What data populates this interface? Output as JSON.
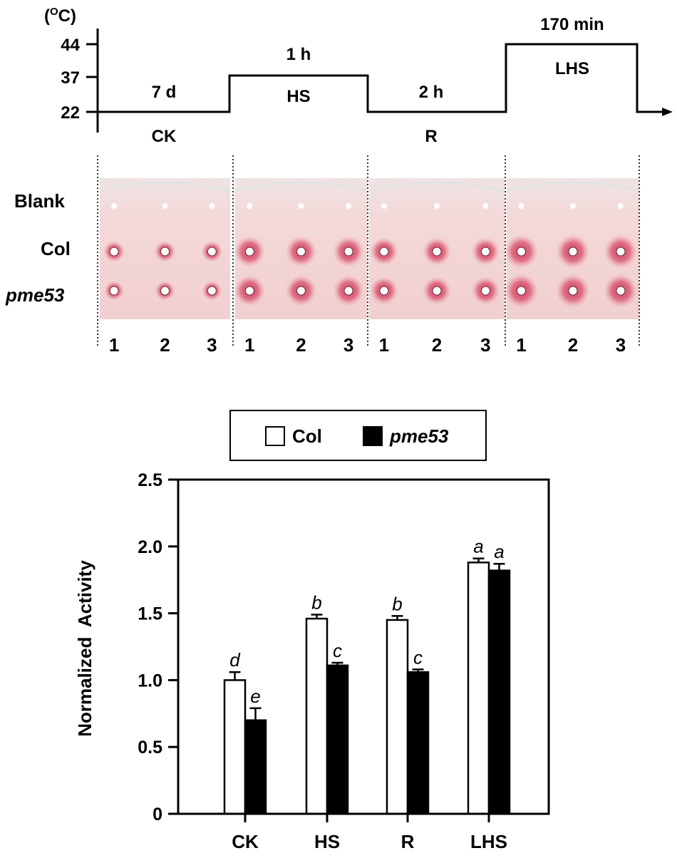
{
  "protocol": {
    "unit_prefix": "(",
    "unit_sup": "O",
    "unit_suffix": "C)",
    "temp_ticks": [
      "44",
      "37",
      "22"
    ],
    "stages": [
      {
        "id": "ck",
        "duration": "7 d",
        "label": "CK"
      },
      {
        "id": "hs",
        "duration": "1 h",
        "label": "HS"
      },
      {
        "id": "r",
        "duration": "2 h",
        "label": "R"
      },
      {
        "id": "lhs",
        "duration": "170 min",
        "label": "LHS"
      }
    ]
  },
  "plates": {
    "row_labels": [
      "Blank",
      "Col",
      "pme53"
    ],
    "replicate_labels": [
      "1",
      "2",
      "3"
    ],
    "colors": {
      "plate": "#f3d9d8",
      "halo": "#d94f6c",
      "well": "#ffffff",
      "divider": "#333333"
    }
  },
  "chart_data": {
    "type": "bar",
    "categories": [
      "CK",
      "HS",
      "R",
      "LHS"
    ],
    "series": [
      {
        "name": "Col",
        "values": [
          1.0,
          1.46,
          1.45,
          1.88
        ],
        "errors": [
          0.06,
          0.03,
          0.03,
          0.03
        ],
        "letters": [
          "d",
          "b",
          "b",
          "a"
        ],
        "fill": "#ffffff"
      },
      {
        "name": "pme53",
        "values": [
          0.7,
          1.11,
          1.06,
          1.82
        ],
        "errors": [
          0.09,
          0.02,
          0.02,
          0.05
        ],
        "letters": [
          "e",
          "c",
          "c",
          "a"
        ],
        "fill": "#000000"
      }
    ],
    "ylabel": "Normalized  Activity",
    "ylim": [
      0,
      2.5
    ],
    "yticks": [
      "0",
      "0.5",
      "1.0",
      "1.5",
      "2.0",
      "2.5"
    ],
    "legend_position": "top-center",
    "grid": false
  }
}
